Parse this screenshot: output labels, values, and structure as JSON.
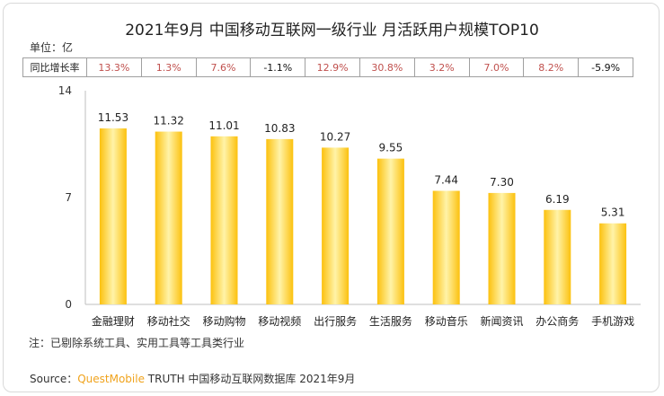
{
  "title": "2021年9月 中国移动互联网一级行业 月活跃用户规模TOP10",
  "unit_label": "单位：亿",
  "growth_row": {
    "header": "同比增长率",
    "values": [
      "13.3%",
      "1.3%",
      "7.6%",
      "-1.1%",
      "12.9%",
      "30.8%",
      "3.2%",
      "7.0%",
      "8.2%",
      "-5.9%"
    ]
  },
  "chart_data": {
    "type": "bar",
    "categories": [
      "金融理财",
      "移动社交",
      "移动购物",
      "移动视频",
      "出行服务",
      "生活服务",
      "移动音乐",
      "新闻资讯",
      "办公商务",
      "手机游戏"
    ],
    "values": [
      11.53,
      11.32,
      11.01,
      10.83,
      10.27,
      9.55,
      7.44,
      7.3,
      6.19,
      5.31
    ],
    "value_labels": [
      "11.53",
      "11.32",
      "11.01",
      "10.83",
      "10.27",
      "9.55",
      "7.44",
      "7.30",
      "6.19",
      "5.31"
    ],
    "yticks": [
      "0",
      "7",
      "14"
    ],
    "ylim": [
      0,
      14
    ],
    "bar_color": "#fcc10e",
    "bar_highlight_color": "#fff3a8"
  },
  "note": "注：已剔除系统工具、实用工具等工具类行业",
  "source": {
    "prefix": "Source：",
    "brand": "QuestMobile",
    "suffix": " TRUTH 中国移动互联网数据库 2021年9月"
  }
}
